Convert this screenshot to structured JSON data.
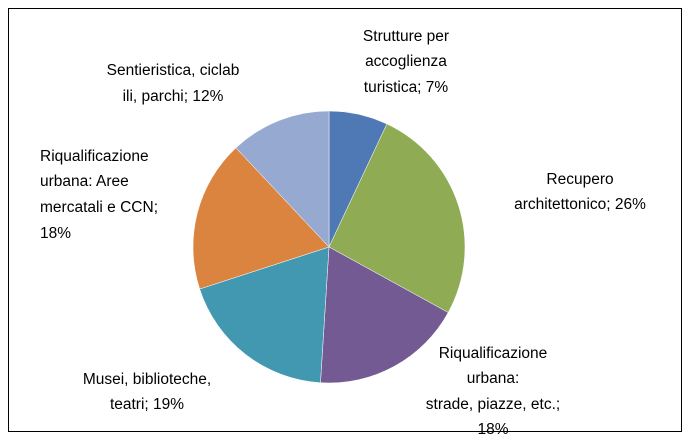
{
  "chart_data": {
    "type": "pie",
    "values": [
      7,
      26,
      18,
      19,
      18,
      12
    ],
    "value_labels": [
      [
        "Strutture per",
        "accoglienza",
        "turistica; 7%"
      ],
      [
        "Recupero",
        "architettonico; 26%"
      ],
      [
        "Riqualificazione",
        "urbana:",
        "strade, piazze, etc.;",
        "18%"
      ],
      [
        "Musei, biblioteche,",
        "teatri; 19%"
      ],
      [
        "Riqualificazione",
        "urbana: Aree",
        "mercatali e CCN;",
        "18%"
      ],
      [
        "Sentieristica, ciclab",
        "ili, parchi; 12%"
      ]
    ],
    "colors": [
      "#4f79b5",
      "#8fac55",
      "#735a93",
      "#4198b0",
      "#db8440",
      "#96a9d1"
    ]
  }
}
